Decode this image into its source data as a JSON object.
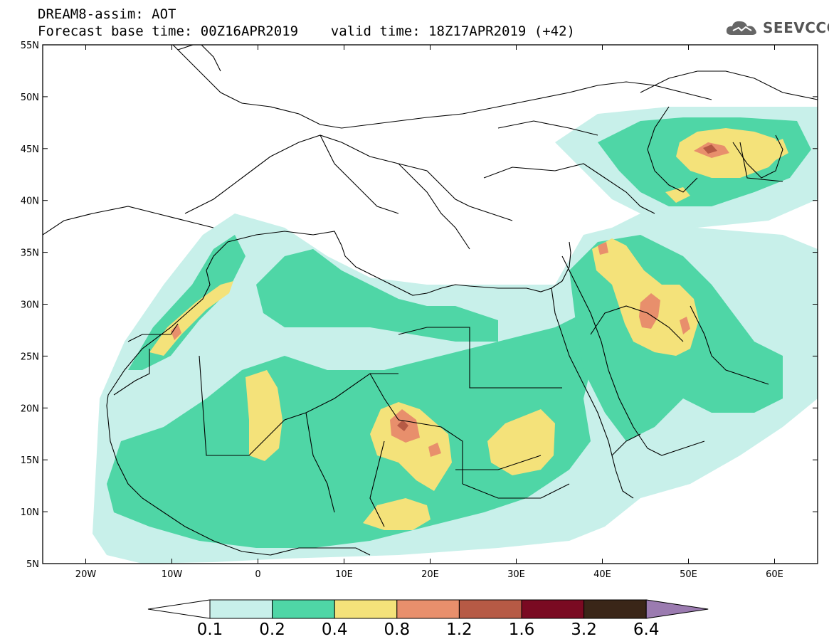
{
  "header": {
    "title": "DREAM8-assim: AOT",
    "forecast_line": "Forecast base time: 00Z16APR2019    valid time: 18Z17APR2019 (+42)"
  },
  "logo": {
    "text": "SEEVCCC",
    "icon": "cloud-icon"
  },
  "map": {
    "lon_range": [
      -25,
      65
    ],
    "lat_range": [
      5,
      55
    ],
    "lon_ticks": [
      "20W",
      "10W",
      "0",
      "10E",
      "20E",
      "30E",
      "40E",
      "50E",
      "60E"
    ],
    "lat_ticks": [
      "5N",
      "10N",
      "15N",
      "20N",
      "25N",
      "30N",
      "35N",
      "40N",
      "45N",
      "50N",
      "55N"
    ]
  },
  "colorbar": {
    "labels": [
      "0.1",
      "0.2",
      "0.4",
      "0.8",
      "1.2",
      "1.6",
      "3.2",
      "6.4"
    ],
    "colors": [
      "#c8f0ea",
      "#4fd6a6",
      "#f4e27a",
      "#e88f6c",
      "#b65a45",
      "#7a0a22",
      "#3a2618",
      "#9b7bb0"
    ]
  },
  "field_colors": {
    "c01": "#c8f0ea",
    "c02": "#4fd6a6",
    "c04": "#f4e27a",
    "c08": "#e88f6c",
    "c12": "#b65a45"
  }
}
